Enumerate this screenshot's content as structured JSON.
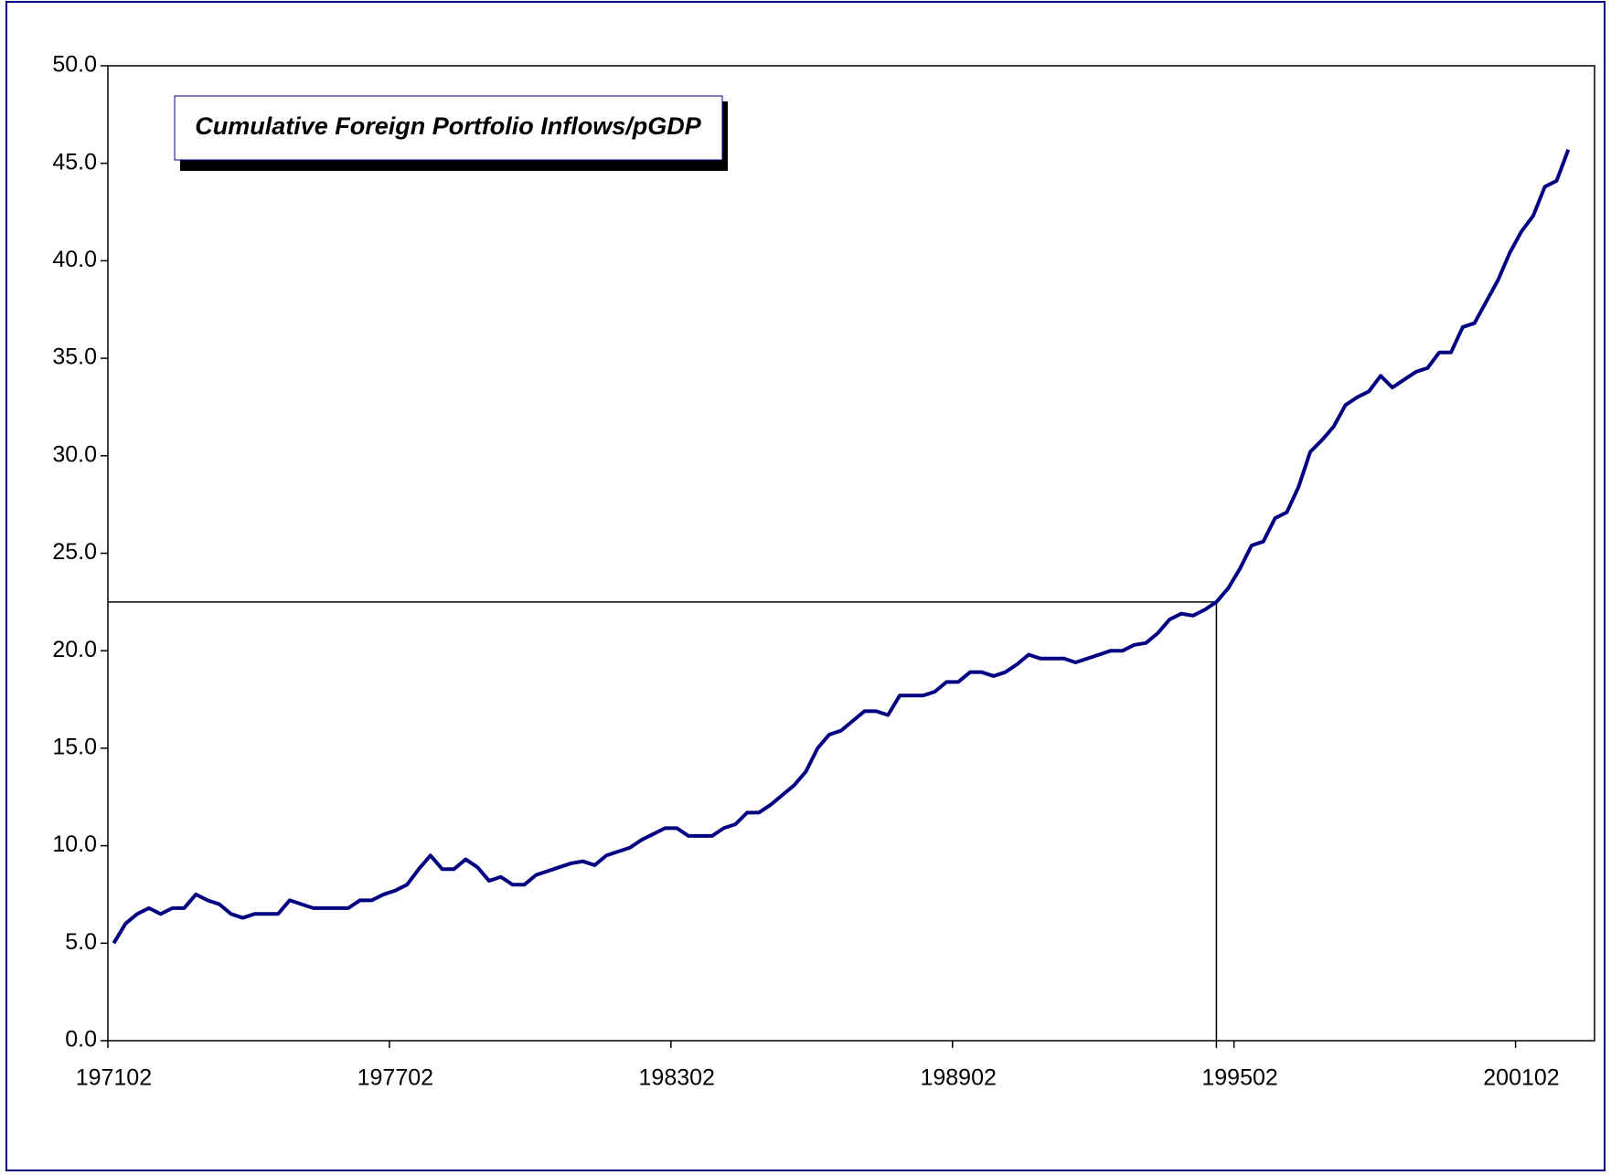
{
  "chart_data": {
    "type": "line",
    "title": "Cumulative Foreign Portfolio Inflows/pGDP",
    "categories": [
      "197102",
      null,
      null,
      null,
      null,
      null,
      null,
      null,
      null,
      null,
      null,
      null,
      null,
      null,
      null,
      null,
      null,
      null,
      null,
      null,
      null,
      null,
      null,
      null,
      "197702",
      null,
      null,
      null,
      null,
      null,
      null,
      null,
      null,
      null,
      null,
      null,
      null,
      null,
      null,
      null,
      null,
      null,
      null,
      null,
      null,
      null,
      null,
      null,
      "198302",
      null,
      null,
      null,
      null,
      null,
      null,
      null,
      null,
      null,
      null,
      null,
      null,
      null,
      null,
      null,
      null,
      null,
      null,
      null,
      null,
      null,
      null,
      null,
      "198902",
      null,
      null,
      null,
      null,
      null,
      null,
      null,
      null,
      null,
      null,
      null,
      null,
      null,
      null,
      null,
      null,
      null,
      null,
      null,
      null,
      null,
      null,
      null,
      "199502",
      null,
      null,
      null,
      null,
      null,
      null,
      null,
      null,
      null,
      null,
      null,
      null,
      null,
      null,
      null,
      null,
      null,
      null,
      null,
      null,
      null,
      null,
      null,
      "200102",
      null,
      null,
      null,
      null
    ],
    "series": [
      {
        "color": "#000080",
        "values": [
          5.0,
          6.0,
          6.5,
          6.8,
          6.5,
          6.8,
          6.8,
          7.5,
          7.2,
          7.0,
          6.5,
          6.3,
          6.5,
          6.5,
          6.5,
          7.2,
          7.0,
          6.8,
          6.8,
          6.8,
          6.8,
          7.2,
          7.2,
          7.5,
          7.7,
          8.0,
          8.8,
          9.5,
          8.8,
          8.8,
          9.3,
          8.9,
          8.2,
          8.4,
          8.0,
          8.0,
          8.5,
          8.7,
          8.9,
          9.1,
          9.2,
          9.0,
          9.5,
          9.7,
          9.9,
          10.3,
          10.6,
          10.9,
          10.9,
          10.5,
          10.5,
          10.5,
          10.9,
          11.1,
          11.7,
          11.7,
          12.1,
          12.6,
          13.1,
          13.8,
          15.0,
          15.7,
          15.9,
          16.4,
          16.9,
          16.9,
          16.7,
          17.7,
          17.7,
          17.7,
          17.9,
          18.4,
          18.4,
          18.9,
          18.9,
          18.7,
          18.9,
          19.3,
          19.8,
          19.6,
          19.6,
          19.6,
          19.4,
          19.6,
          19.8,
          20.0,
          20.0,
          20.3,
          20.4,
          20.9,
          21.6,
          21.9,
          21.8,
          22.1,
          22.5,
          23.2,
          24.2,
          25.4,
          25.6,
          26.8,
          27.1,
          28.4,
          30.2,
          30.8,
          31.5,
          32.6,
          33.0,
          33.3,
          34.1,
          33.5,
          33.9,
          34.3,
          34.5,
          35.3,
          35.3,
          36.6,
          36.8,
          37.9,
          39.0,
          40.4,
          41.5,
          42.3,
          43.8,
          44.1,
          45.7
        ]
      }
    ],
    "reference_line": {
      "y": 22.5,
      "index": 94
    },
    "ylim": [
      0,
      50
    ],
    "yticks": [
      {
        "value": 0,
        "label": "0.0"
      },
      {
        "value": 5,
        "label": "5.0"
      },
      {
        "value": 10,
        "label": "10.0"
      },
      {
        "value": 15,
        "label": "15.0"
      },
      {
        "value": 20,
        "label": "20.0"
      },
      {
        "value": 25,
        "label": "25.0"
      },
      {
        "value": 30,
        "label": "30.0"
      },
      {
        "value": 35,
        "label": "35.0"
      },
      {
        "value": 40,
        "label": "40.0"
      },
      {
        "value": 45,
        "label": "45.0"
      },
      {
        "value": 50,
        "label": "50.0"
      }
    ],
    "grid": false
  }
}
